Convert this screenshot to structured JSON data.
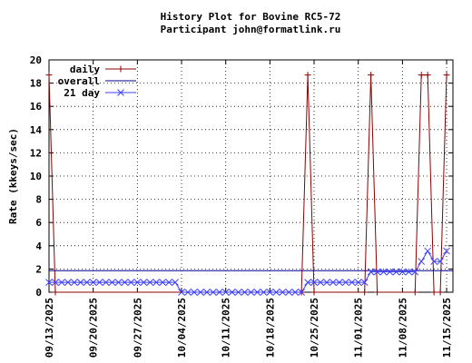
{
  "chart_data": {
    "type": "line",
    "title": "History Plot for Bovine RC5-72",
    "subtitle": "Participant john@formatlink.ru",
    "xlabel": "",
    "ylabel": "Rate (kkeys/sec)",
    "ylim": [
      0,
      20
    ],
    "y_ticks": [
      "0",
      "2",
      "4",
      "6",
      "8",
      "10",
      "12",
      "14",
      "16",
      "18",
      "20"
    ],
    "x_tick_labels": [
      "09/13/2025",
      "09/20/2025",
      "09/27/2025",
      "10/04/2025",
      "10/11/2025",
      "10/18/2025",
      "10/25/2025",
      "11/01/2025",
      "11/08/2025",
      "11/15/2025"
    ],
    "x_range": [
      "2025-09-13",
      "2025-11-16"
    ],
    "grid": true,
    "legend_position": "top-left",
    "series": [
      {
        "name": "daily",
        "color": "#8b0000",
        "marker": "plus",
        "points": [
          [
            "2025-09-13",
            18.7
          ],
          [
            "2025-09-14",
            0
          ],
          [
            "2025-10-23",
            0
          ],
          [
            "2025-10-24",
            18.7
          ],
          [
            "2025-10-25",
            0
          ],
          [
            "2025-11-02",
            0
          ],
          [
            "2025-11-03",
            18.7
          ],
          [
            "2025-11-04",
            0
          ],
          [
            "2025-11-10",
            0
          ],
          [
            "2025-11-11",
            18.7
          ],
          [
            "2025-11-12",
            18.7
          ],
          [
            "2025-11-13",
            0
          ],
          [
            "2025-11-14",
            0
          ],
          [
            "2025-11-15",
            18.7
          ]
        ]
      },
      {
        "name": "overall",
        "color": "#00008b",
        "marker": "none",
        "points": [
          [
            "2025-09-13",
            1.85
          ],
          [
            "2025-11-16",
            1.85
          ]
        ]
      },
      {
        "name": "21 day",
        "color": "#4040ff",
        "marker": "x",
        "points": [
          [
            "2025-09-13",
            0.85
          ],
          [
            "2025-09-14",
            0.85
          ],
          [
            "2025-09-15",
            0.85
          ],
          [
            "2025-09-16",
            0.85
          ],
          [
            "2025-09-17",
            0.85
          ],
          [
            "2025-09-18",
            0.85
          ],
          [
            "2025-09-19",
            0.85
          ],
          [
            "2025-09-20",
            0.85
          ],
          [
            "2025-09-21",
            0.85
          ],
          [
            "2025-09-22",
            0.85
          ],
          [
            "2025-09-23",
            0.85
          ],
          [
            "2025-09-24",
            0.85
          ],
          [
            "2025-09-25",
            0.85
          ],
          [
            "2025-09-26",
            0.85
          ],
          [
            "2025-09-27",
            0.85
          ],
          [
            "2025-09-28",
            0.85
          ],
          [
            "2025-09-29",
            0.85
          ],
          [
            "2025-09-30",
            0.85
          ],
          [
            "2025-10-01",
            0.85
          ],
          [
            "2025-10-02",
            0.85
          ],
          [
            "2025-10-03",
            0.85
          ],
          [
            "2025-10-04",
            0
          ],
          [
            "2025-10-05",
            0
          ],
          [
            "2025-10-06",
            0
          ],
          [
            "2025-10-07",
            0
          ],
          [
            "2025-10-08",
            0
          ],
          [
            "2025-10-09",
            0
          ],
          [
            "2025-10-10",
            0
          ],
          [
            "2025-10-11",
            0
          ],
          [
            "2025-10-12",
            0
          ],
          [
            "2025-10-13",
            0
          ],
          [
            "2025-10-14",
            0
          ],
          [
            "2025-10-15",
            0
          ],
          [
            "2025-10-16",
            0
          ],
          [
            "2025-10-17",
            0
          ],
          [
            "2025-10-18",
            0
          ],
          [
            "2025-10-19",
            0
          ],
          [
            "2025-10-20",
            0
          ],
          [
            "2025-10-21",
            0
          ],
          [
            "2025-10-22",
            0
          ],
          [
            "2025-10-23",
            0
          ],
          [
            "2025-10-24",
            0.85
          ],
          [
            "2025-10-25",
            0.85
          ],
          [
            "2025-10-26",
            0.85
          ],
          [
            "2025-10-27",
            0.85
          ],
          [
            "2025-10-28",
            0.85
          ],
          [
            "2025-10-29",
            0.85
          ],
          [
            "2025-10-30",
            0.85
          ],
          [
            "2025-10-31",
            0.85
          ],
          [
            "2025-11-01",
            0.85
          ],
          [
            "2025-11-02",
            0.85
          ],
          [
            "2025-11-03",
            1.75
          ],
          [
            "2025-11-04",
            1.75
          ],
          [
            "2025-11-05",
            1.75
          ],
          [
            "2025-11-06",
            1.75
          ],
          [
            "2025-11-07",
            1.75
          ],
          [
            "2025-11-08",
            1.75
          ],
          [
            "2025-11-09",
            1.75
          ],
          [
            "2025-11-10",
            1.75
          ],
          [
            "2025-11-11",
            2.65
          ],
          [
            "2025-11-12",
            3.55
          ],
          [
            "2025-11-13",
            2.65
          ],
          [
            "2025-11-14",
            2.65
          ],
          [
            "2025-11-15",
            3.55
          ]
        ]
      }
    ]
  }
}
